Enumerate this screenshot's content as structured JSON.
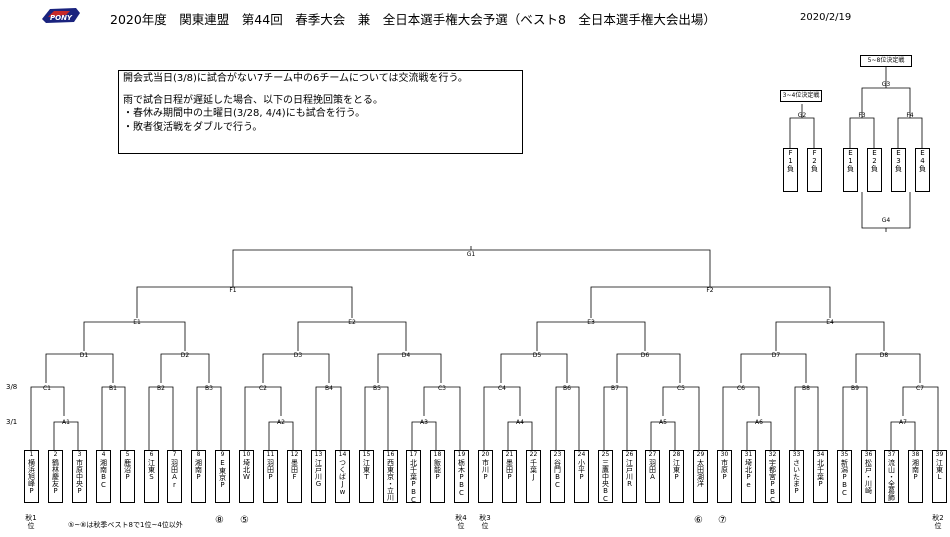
{
  "header": {
    "title": "2020年度　関東連盟　第44回　春季大会　兼　全日本選手権大会予選（ベスト8　全日本選手権大会出場）",
    "date": "2020/2/19",
    "logo_text": "PONY"
  },
  "notice": {
    "line1": "開会式当日(3/8)に試合がない7チーム中の6チームについては交流戦を行う。",
    "line2": "雨で試合日程が遅延した場合、以下の日程挽回策をとる。",
    "line3": "・春休み期間中の土曜日(3/28, 4/4)にも試合を行う。",
    "line4": "・敗者復活戦をダブルで行う。"
  },
  "small_bracket": {
    "third_label": "3~4位決定戦",
    "fifth_label": "5~8位決定戦",
    "g2": "G2",
    "g3": "G3",
    "g4": "G4",
    "f3": "F3",
    "f4": "F4",
    "teams": [
      "F1負",
      "F2負",
      "E1負",
      "E2負",
      "E3負",
      "E4負"
    ]
  },
  "row_labels": {
    "r38": "3/8",
    "r31": "3/1"
  },
  "nodes": {
    "G1": "G1",
    "F1": "F1",
    "F2": "F2",
    "E1": "E1",
    "E2": "E2",
    "E3": "E3",
    "E4": "E4",
    "D1": "D1",
    "D2": "D2",
    "D3": "D3",
    "D4": "D4",
    "D5": "D5",
    "D6": "D6",
    "D7": "D7",
    "D8": "D8",
    "C1": "C1",
    "B1": "B1",
    "B2": "B2",
    "B3": "B3",
    "C2": "C2",
    "B4": "B4",
    "B5": "B5",
    "C3": "C3",
    "C4": "C4",
    "B6": "B6",
    "B7": "B7",
    "C5": "C5",
    "C6": "C6",
    "B8": "B8",
    "B9": "B9",
    "C7": "C7",
    "A1": "A1",
    "A2": "A2",
    "A3": "A3",
    "A4": "A4",
    "A5": "A5",
    "A6": "A6",
    "A7": "A7"
  },
  "teams": [
    {
      "num": "1",
      "name": "横浜旭峰P"
    },
    {
      "num": "2",
      "name": "鶴林慶友P"
    },
    {
      "num": "3",
      "name": "市原中央P"
    },
    {
      "num": "4",
      "name": "湘南BC"
    },
    {
      "num": "5",
      "name": "鹿沼P"
    },
    {
      "num": "6",
      "name": "江東S"
    },
    {
      "num": "7",
      "name": "羽田Ar"
    },
    {
      "num": "8",
      "name": "湘南P"
    },
    {
      "num": "9",
      "name": "E東京P"
    },
    {
      "num": "10",
      "name": "埼北W"
    },
    {
      "num": "11",
      "name": "羽田P"
    },
    {
      "num": "12",
      "name": "墨田F"
    },
    {
      "num": "13",
      "name": "江戸川G"
    },
    {
      "num": "14",
      "name": "つくばJw"
    },
    {
      "num": "15",
      "name": "江東T"
    },
    {
      "num": "16",
      "name": "西東京・立川"
    },
    {
      "num": "17",
      "name": "北千葉PBC"
    },
    {
      "num": "18",
      "name": "飯能P"
    },
    {
      "num": "19",
      "name": "栃木PBC"
    },
    {
      "num": "20",
      "name": "市川P"
    },
    {
      "num": "21",
      "name": "墨田P"
    },
    {
      "num": "22",
      "name": "千葉J"
    },
    {
      "num": "23",
      "name": "谷門BC"
    },
    {
      "num": "24",
      "name": "小平P"
    },
    {
      "num": "25",
      "name": "三鷹中央BC"
    },
    {
      "num": "26",
      "name": "江戸川R"
    },
    {
      "num": "27",
      "name": "羽田A"
    },
    {
      "num": "28",
      "name": "江東P"
    },
    {
      "num": "29",
      "name": "太田湖洋"
    },
    {
      "num": "30",
      "name": "市原P"
    },
    {
      "num": "31",
      "name": "埼北Pe"
    },
    {
      "num": "32",
      "name": "宇都宮PBC"
    },
    {
      "num": "33",
      "name": "さいたまP"
    },
    {
      "num": "34",
      "name": "北千葉P"
    },
    {
      "num": "35",
      "name": "新潟PBC"
    },
    {
      "num": "36",
      "name": "松戸・川崎"
    },
    {
      "num": "37",
      "name": "流山・全葛飾"
    },
    {
      "num": "38",
      "name": "湘南P"
    },
    {
      "num": "39",
      "name": "江東L"
    }
  ],
  "footer": {
    "seed1": "秋1位",
    "seed4": "秋4位",
    "seed3": "秋3位",
    "seed2": "秋2位",
    "note": "⑤~⑧は秋季ベスト8で1位~4位以外",
    "c8": "⑧",
    "c5": "⑤",
    "c6": "⑥",
    "c7": "⑦"
  }
}
